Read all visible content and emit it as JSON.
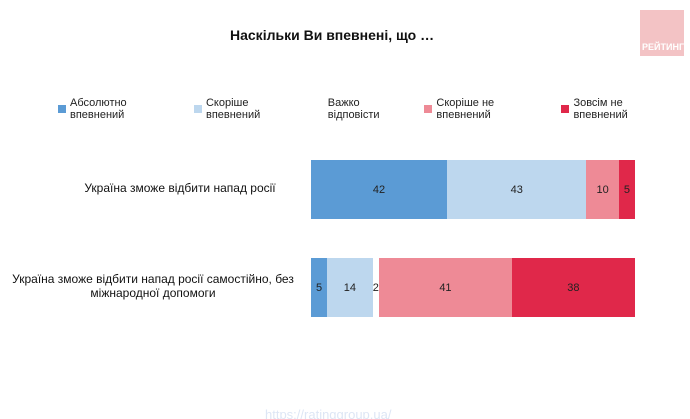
{
  "title": "Наскільки Ви впевнені, що …",
  "logo": "РЕЙТИНГ",
  "footer_url": "https://ratinggroup.ua/",
  "chart_data": {
    "type": "bar",
    "orientation": "horizontal-stacked",
    "title": "Наскільки Ви впевнені, що …",
    "legend_position": "top",
    "categories": [
      "Україна зможе відбити напад росії",
      "Україна зможе відбити напад росії самостійно, без міжнародної допомоги"
    ],
    "series": [
      {
        "name": "Абсолютно впевнений",
        "color": "#5b9bd5",
        "values": [
          42,
          5
        ]
      },
      {
        "name": "Скоріше впевнений",
        "color": "#bdd7ee",
        "values": [
          43,
          14
        ]
      },
      {
        "name": "Важко відповісти",
        "color": "#ffffff",
        "values": [
          0,
          2
        ]
      },
      {
        "name": "Скоріше не впевнений",
        "color": "#ee8a96",
        "values": [
          10,
          41
        ]
      },
      {
        "name": "Зовсім не впевнений",
        "color": "#e0284a",
        "values": [
          5,
          38
        ]
      }
    ],
    "data_labels": [
      [
        "42",
        "43",
        "",
        "10",
        "5"
      ],
      [
        "5",
        "14",
        "2",
        "41",
        "38"
      ]
    ],
    "xlim": [
      0,
      100
    ]
  }
}
